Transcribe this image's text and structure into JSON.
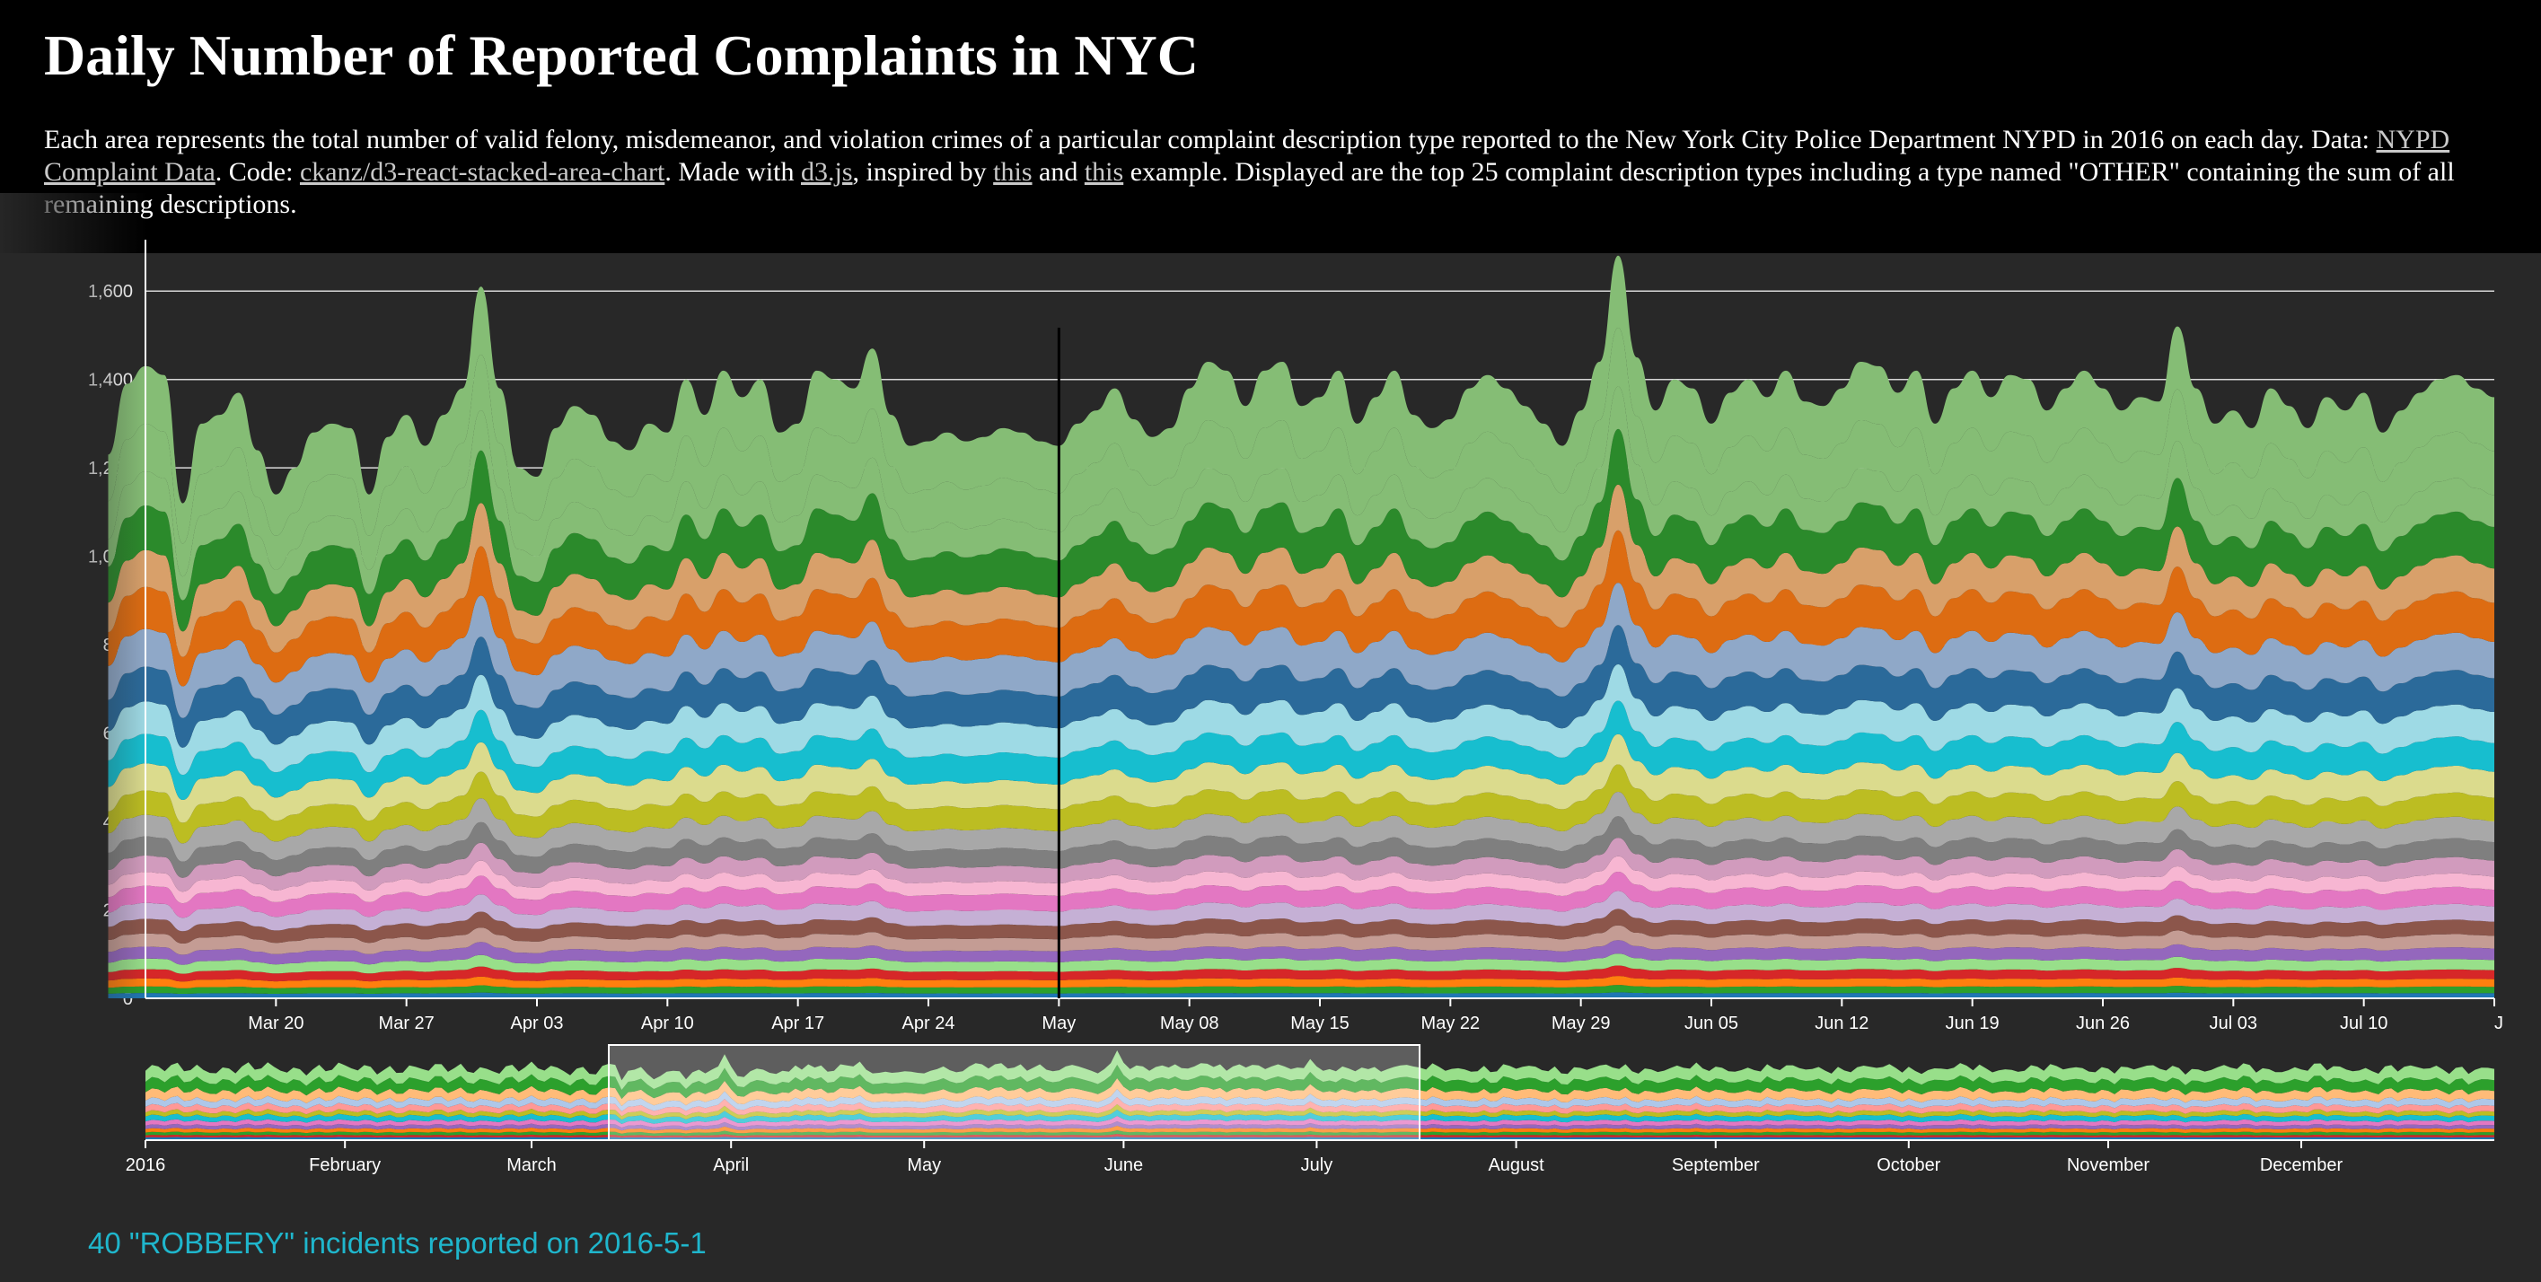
{
  "header": {
    "title": "Daily Number of Reported Complaints in NYC",
    "desc_1": "Each area represents the total number of valid felony, misdemeanor, and violation crimes of a particular complaint description type reported to the New York City Police Department NYPD in 2016 on each day. Data: ",
    "link_data": "NYPD Complaint Data",
    "desc_2": ". Code: ",
    "link_code": "ckanz/d3-react-stacked-area-chart",
    "desc_3": ". Made with ",
    "link_d3": "d3.js",
    "desc_4": ", inspired by ",
    "link_this1": "this",
    "desc_5": " and ",
    "link_this2": "this",
    "desc_6": " example. Displayed are the top 25 complaint description types including a type named \"OTHER\" containing the sum of all remaining descriptions."
  },
  "status": {
    "text": "40 \"ROBBERY\" incidents reported on 2016-5-1"
  },
  "colors": {
    "background": "#282828",
    "header_bg": "#000000",
    "status_text": "#1fb6cc",
    "series_palette": [
      "#1f77b4",
      "#aec7e8",
      "#ff7f0e",
      "#ffbb78",
      "#2ca02c",
      "#98df8a",
      "#d62728",
      "#ff9896",
      "#9467bd",
      "#c5b0d5",
      "#8c564b",
      "#c49c94",
      "#e377c2",
      "#f7b6d2",
      "#7f7f7f",
      "#c7c7c7",
      "#bcbd22",
      "#dbdb8d",
      "#17becf",
      "#9edae5",
      "#1f77b4",
      "#aec7e8",
      "#ff7f0e",
      "#ffbb78",
      "#2ca02c",
      "#98df8a"
    ]
  },
  "chart_data": [
    {
      "type": "area",
      "stacked": true,
      "series_count": 25,
      "x_range": [
        "2016-03-13",
        "2016-07-17"
      ],
      "ylim": [
        0,
        1700
      ],
      "yticks": [
        0,
        200,
        400,
        600,
        800,
        1000,
        1200,
        1400,
        1600
      ],
      "ytick_labels": [
        "0",
        "200",
        "400",
        "600",
        "800",
        "1,000",
        "1,200",
        "1,400",
        "1,600"
      ],
      "xticks": [
        {
          "date": "2016-03-20",
          "label": "Mar 20"
        },
        {
          "date": "2016-03-27",
          "label": "Mar 27"
        },
        {
          "date": "2016-04-03",
          "label": "Apr 03"
        },
        {
          "date": "2016-04-10",
          "label": "Apr 10"
        },
        {
          "date": "2016-04-17",
          "label": "Apr 17"
        },
        {
          "date": "2016-04-24",
          "label": "Apr 24"
        },
        {
          "date": "2016-05-01",
          "label": "May"
        },
        {
          "date": "2016-05-08",
          "label": "May 08"
        },
        {
          "date": "2016-05-15",
          "label": "May 15"
        },
        {
          "date": "2016-05-22",
          "label": "May 22"
        },
        {
          "date": "2016-05-29",
          "label": "May 29"
        },
        {
          "date": "2016-06-05",
          "label": "Jun 05"
        },
        {
          "date": "2016-06-12",
          "label": "Jun 12"
        },
        {
          "date": "2016-06-19",
          "label": "Jun 19"
        },
        {
          "date": "2016-06-26",
          "label": "Jun 26"
        },
        {
          "date": "2016-07-03",
          "label": "Jul 03"
        },
        {
          "date": "2016-07-10",
          "label": "Jul 10"
        },
        {
          "date": "2016-07-17",
          "label": "J"
        }
      ],
      "hover_date": "2016-05-01",
      "grid": true,
      "totals": [
        {
          "date": "2016-03-11",
          "value": 1230
        },
        {
          "date": "2016-03-12",
          "value": 1390
        },
        {
          "date": "2016-03-13",
          "value": 1430
        },
        {
          "date": "2016-03-14",
          "value": 1410
        },
        {
          "date": "2016-03-15",
          "value": 1120
        },
        {
          "date": "2016-03-16",
          "value": 1300
        },
        {
          "date": "2016-03-17",
          "value": 1320
        },
        {
          "date": "2016-03-18",
          "value": 1370
        },
        {
          "date": "2016-03-19",
          "value": 1240
        },
        {
          "date": "2016-03-20",
          "value": 1140
        },
        {
          "date": "2016-03-21",
          "value": 1200
        },
        {
          "date": "2016-03-22",
          "value": 1280
        },
        {
          "date": "2016-03-23",
          "value": 1300
        },
        {
          "date": "2016-03-24",
          "value": 1290
        },
        {
          "date": "2016-03-25",
          "value": 1140
        },
        {
          "date": "2016-03-26",
          "value": 1270
        },
        {
          "date": "2016-03-27",
          "value": 1320
        },
        {
          "date": "2016-03-28",
          "value": 1250
        },
        {
          "date": "2016-03-29",
          "value": 1320
        },
        {
          "date": "2016-03-30",
          "value": 1380
        },
        {
          "date": "2016-03-31",
          "value": 1610
        },
        {
          "date": "2016-04-01",
          "value": 1380
        },
        {
          "date": "2016-04-02",
          "value": 1200
        },
        {
          "date": "2016-04-03",
          "value": 1180
        },
        {
          "date": "2016-04-04",
          "value": 1290
        },
        {
          "date": "2016-04-05",
          "value": 1340
        },
        {
          "date": "2016-04-06",
          "value": 1320
        },
        {
          "date": "2016-04-07",
          "value": 1260
        },
        {
          "date": "2016-04-08",
          "value": 1240
        },
        {
          "date": "2016-04-09",
          "value": 1300
        },
        {
          "date": "2016-04-10",
          "value": 1280
        },
        {
          "date": "2016-04-11",
          "value": 1400
        },
        {
          "date": "2016-04-12",
          "value": 1320
        },
        {
          "date": "2016-04-13",
          "value": 1420
        },
        {
          "date": "2016-04-14",
          "value": 1360
        },
        {
          "date": "2016-04-15",
          "value": 1400
        },
        {
          "date": "2016-04-16",
          "value": 1280
        },
        {
          "date": "2016-04-17",
          "value": 1300
        },
        {
          "date": "2016-04-18",
          "value": 1420
        },
        {
          "date": "2016-04-19",
          "value": 1400
        },
        {
          "date": "2016-04-20",
          "value": 1380
        },
        {
          "date": "2016-04-21",
          "value": 1470
        },
        {
          "date": "2016-04-22",
          "value": 1320
        },
        {
          "date": "2016-04-23",
          "value": 1250
        },
        {
          "date": "2016-04-24",
          "value": 1260
        },
        {
          "date": "2016-04-25",
          "value": 1280
        },
        {
          "date": "2016-04-26",
          "value": 1260
        },
        {
          "date": "2016-04-27",
          "value": 1270
        },
        {
          "date": "2016-04-28",
          "value": 1290
        },
        {
          "date": "2016-04-29",
          "value": 1280
        },
        {
          "date": "2016-04-30",
          "value": 1260
        },
        {
          "date": "2016-05-01",
          "value": 1250
        },
        {
          "date": "2016-05-02",
          "value": 1300
        },
        {
          "date": "2016-05-03",
          "value": 1330
        },
        {
          "date": "2016-05-04",
          "value": 1380
        },
        {
          "date": "2016-05-05",
          "value": 1310
        },
        {
          "date": "2016-05-06",
          "value": 1270
        },
        {
          "date": "2016-05-07",
          "value": 1290
        },
        {
          "date": "2016-05-08",
          "value": 1380
        },
        {
          "date": "2016-05-09",
          "value": 1440
        },
        {
          "date": "2016-05-10",
          "value": 1420
        },
        {
          "date": "2016-05-11",
          "value": 1340
        },
        {
          "date": "2016-05-12",
          "value": 1420
        },
        {
          "date": "2016-05-13",
          "value": 1440
        },
        {
          "date": "2016-05-14",
          "value": 1340
        },
        {
          "date": "2016-05-15",
          "value": 1360
        },
        {
          "date": "2016-05-16",
          "value": 1420
        },
        {
          "date": "2016-05-17",
          "value": 1300
        },
        {
          "date": "2016-05-18",
          "value": 1360
        },
        {
          "date": "2016-05-19",
          "value": 1420
        },
        {
          "date": "2016-05-20",
          "value": 1320
        },
        {
          "date": "2016-05-21",
          "value": 1290
        },
        {
          "date": "2016-05-22",
          "value": 1310
        },
        {
          "date": "2016-05-23",
          "value": 1380
        },
        {
          "date": "2016-05-24",
          "value": 1410
        },
        {
          "date": "2016-05-25",
          "value": 1380
        },
        {
          "date": "2016-05-26",
          "value": 1340
        },
        {
          "date": "2016-05-27",
          "value": 1300
        },
        {
          "date": "2016-05-28",
          "value": 1250
        },
        {
          "date": "2016-05-29",
          "value": 1330
        },
        {
          "date": "2016-05-30",
          "value": 1440
        },
        {
          "date": "2016-05-31",
          "value": 1680
        },
        {
          "date": "2016-06-01",
          "value": 1450
        },
        {
          "date": "2016-06-02",
          "value": 1330
        },
        {
          "date": "2016-06-03",
          "value": 1400
        },
        {
          "date": "2016-06-04",
          "value": 1380
        },
        {
          "date": "2016-06-05",
          "value": 1300
        },
        {
          "date": "2016-06-06",
          "value": 1370
        },
        {
          "date": "2016-06-07",
          "value": 1400
        },
        {
          "date": "2016-06-08",
          "value": 1360
        },
        {
          "date": "2016-06-09",
          "value": 1420
        },
        {
          "date": "2016-06-10",
          "value": 1350
        },
        {
          "date": "2016-06-11",
          "value": 1340
        },
        {
          "date": "2016-06-12",
          "value": 1380
        },
        {
          "date": "2016-06-13",
          "value": 1440
        },
        {
          "date": "2016-06-14",
          "value": 1430
        },
        {
          "date": "2016-06-15",
          "value": 1370
        },
        {
          "date": "2016-06-16",
          "value": 1420
        },
        {
          "date": "2016-06-17",
          "value": 1300
        },
        {
          "date": "2016-06-18",
          "value": 1380
        },
        {
          "date": "2016-06-19",
          "value": 1420
        },
        {
          "date": "2016-06-20",
          "value": 1360
        },
        {
          "date": "2016-06-21",
          "value": 1410
        },
        {
          "date": "2016-06-22",
          "value": 1400
        },
        {
          "date": "2016-06-23",
          "value": 1330
        },
        {
          "date": "2016-06-24",
          "value": 1380
        },
        {
          "date": "2016-06-25",
          "value": 1420
        },
        {
          "date": "2016-06-26",
          "value": 1380
        },
        {
          "date": "2016-06-27",
          "value": 1330
        },
        {
          "date": "2016-06-28",
          "value": 1360
        },
        {
          "date": "2016-06-29",
          "value": 1350
        },
        {
          "date": "2016-06-30",
          "value": 1520
        },
        {
          "date": "2016-07-01",
          "value": 1380
        },
        {
          "date": "2016-07-02",
          "value": 1300
        },
        {
          "date": "2016-07-03",
          "value": 1330
        },
        {
          "date": "2016-07-04",
          "value": 1290
        },
        {
          "date": "2016-07-05",
          "value": 1380
        },
        {
          "date": "2016-07-06",
          "value": 1340
        },
        {
          "date": "2016-07-07",
          "value": 1290
        },
        {
          "date": "2016-07-08",
          "value": 1360
        },
        {
          "date": "2016-07-09",
          "value": 1330
        },
        {
          "date": "2016-07-10",
          "value": 1370
        },
        {
          "date": "2016-07-11",
          "value": 1280
        },
        {
          "date": "2016-07-12",
          "value": 1330
        },
        {
          "date": "2016-07-13",
          "value": 1370
        },
        {
          "date": "2016-07-14",
          "value": 1400
        },
        {
          "date": "2016-07-15",
          "value": 1410
        },
        {
          "date": "2016-07-16",
          "value": 1380
        },
        {
          "date": "2016-07-17",
          "value": 1360
        }
      ]
    },
    {
      "type": "area",
      "stacked": true,
      "role": "overview-brush",
      "x_range": [
        "2016-01-01",
        "2016-12-31"
      ],
      "xticks": [
        {
          "date": "2016-01-01",
          "label": "2016"
        },
        {
          "date": "2016-02-01",
          "label": "February"
        },
        {
          "date": "2016-03-01",
          "label": "March"
        },
        {
          "date": "2016-04-01",
          "label": "April"
        },
        {
          "date": "2016-05-01",
          "label": "May"
        },
        {
          "date": "2016-06-01",
          "label": "June"
        },
        {
          "date": "2016-07-01",
          "label": "July"
        },
        {
          "date": "2016-08-01",
          "label": "August"
        },
        {
          "date": "2016-09-01",
          "label": "September"
        },
        {
          "date": "2016-10-01",
          "label": "October"
        },
        {
          "date": "2016-11-01",
          "label": "November"
        },
        {
          "date": "2016-12-01",
          "label": "December"
        }
      ],
      "brush_range": [
        "2016-03-13",
        "2016-07-17"
      ]
    }
  ]
}
